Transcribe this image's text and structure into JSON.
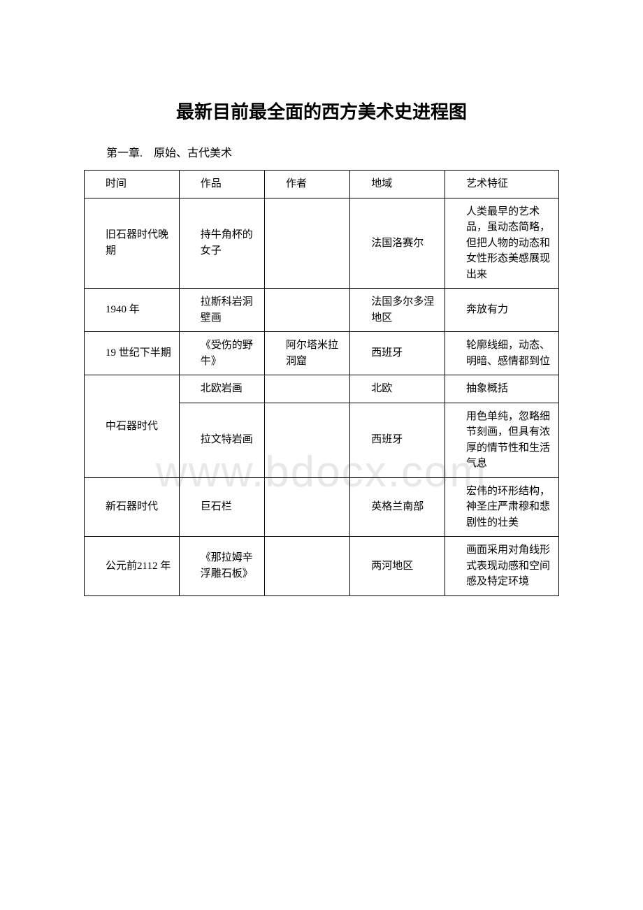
{
  "title": "最新目前最全面的西方美术史进程图",
  "chapter": "第一章.　原始、古代美术",
  "watermark": "www.bdocx.com",
  "table": {
    "columns": [
      "时间",
      "作品",
      "作者",
      "地域",
      "艺术特征"
    ],
    "rows": [
      {
        "time": "旧石器时代晚期",
        "work": "持牛角杯的女子",
        "author": "",
        "region": "法国洛赛尔",
        "feature": "人类最早的艺术品，虽动态简略，但把人物的动态和女性形态美感展现出来"
      },
      {
        "time": "1940 年",
        "work": "拉斯科岩洞壁画",
        "author": "",
        "region": "法国多尔多涅地区",
        "feature": "奔放有力"
      },
      {
        "time": "19 世纪下半期",
        "work": "《受伤的野牛》",
        "author": "阿尔塔米拉洞窟",
        "region": "西班牙",
        "feature": "轮廓线细，动态、明暗、感情都到位"
      },
      {
        "time": "中石器时代",
        "work": "北欧岩画",
        "author": "",
        "region": "北欧",
        "feature": "抽象概括",
        "rowspan_time": 2
      },
      {
        "time": "",
        "work": "拉文特岩画",
        "author": "",
        "region": "西班牙",
        "feature": "用色单纯，忽略细节刻画，但具有浓厚的情节性和生活气息"
      },
      {
        "time": "新石器时代",
        "work": "巨石栏",
        "author": "",
        "region": "英格兰南部",
        "feature": "宏伟的环形结构，神圣庄严肃穆和悲剧性的壮美"
      },
      {
        "time": "公元前2112 年",
        "work": "《那拉姆辛浮雕石板》",
        "author": "",
        "region": "两河地区",
        "feature": "画面采用对角线形式表现动感和空间感及特定环境"
      }
    ]
  }
}
